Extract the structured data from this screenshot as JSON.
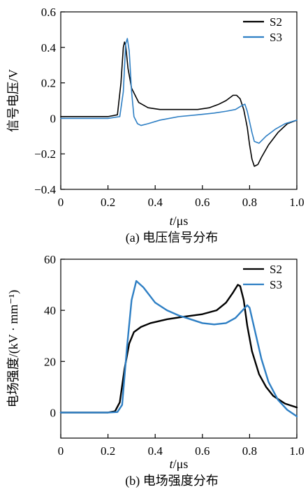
{
  "chart_data": [
    {
      "type": "line",
      "caption": "(a)  电压信号分布",
      "xlabel_italic": "t",
      "xlabel_rest": "/μs",
      "ylabel": "信号电压/V",
      "xlim": [
        0,
        1.0
      ],
      "ylim": [
        -0.4,
        0.6
      ],
      "xticks": [
        "0",
        "0.2",
        "0.4",
        "0.6",
        "0.8",
        "1.0"
      ],
      "xtick_values": [
        0,
        0.2,
        0.4,
        0.6,
        0.8,
        1.0
      ],
      "yticks": [
        "−0.4",
        "−0.2",
        "0",
        "0.2",
        "0.4",
        "0.6"
      ],
      "ytick_values": [
        -0.4,
        -0.2,
        0,
        0.2,
        0.4,
        0.6
      ],
      "legend_position": "top-right",
      "series": [
        {
          "name": "S2",
          "color": "#000000",
          "x": [
            0,
            0.1,
            0.2,
            0.24,
            0.255,
            0.265,
            0.27,
            0.275,
            0.285,
            0.3,
            0.33,
            0.37,
            0.42,
            0.5,
            0.58,
            0.63,
            0.67,
            0.7,
            0.73,
            0.745,
            0.76,
            0.775,
            0.79,
            0.8,
            0.81,
            0.82,
            0.835,
            0.85,
            0.88,
            0.92,
            0.96,
            1.0
          ],
          "values": [
            0.01,
            0.01,
            0.01,
            0.02,
            0.2,
            0.4,
            0.43,
            0.41,
            0.28,
            0.17,
            0.09,
            0.06,
            0.05,
            0.05,
            0.05,
            0.06,
            0.08,
            0.1,
            0.13,
            0.13,
            0.11,
            0.05,
            -0.05,
            -0.15,
            -0.23,
            -0.27,
            -0.26,
            -0.22,
            -0.15,
            -0.08,
            -0.03,
            -0.01
          ]
        },
        {
          "name": "S3",
          "color": "#2e7fc4",
          "x": [
            0,
            0.1,
            0.2,
            0.25,
            0.265,
            0.275,
            0.282,
            0.29,
            0.3,
            0.31,
            0.325,
            0.34,
            0.37,
            0.42,
            0.5,
            0.58,
            0.65,
            0.7,
            0.74,
            0.765,
            0.78,
            0.79,
            0.8,
            0.81,
            0.82,
            0.84,
            0.87,
            0.91,
            0.95,
            1.0
          ],
          "values": [
            0,
            0,
            0,
            0.01,
            0.15,
            0.42,
            0.45,
            0.38,
            0.15,
            0.01,
            -0.03,
            -0.04,
            -0.03,
            -0.01,
            0.01,
            0.02,
            0.03,
            0.04,
            0.05,
            0.07,
            0.08,
            0.04,
            -0.02,
            -0.08,
            -0.13,
            -0.14,
            -0.1,
            -0.06,
            -0.03,
            -0.01
          ]
        }
      ]
    },
    {
      "type": "line",
      "caption": "(b)  电场强度分布",
      "xlabel_italic": "t",
      "xlabel_rest": "/μs",
      "ylabel": "电场强度/(kV · mm⁻¹)",
      "xlim": [
        0,
        1.0
      ],
      "ylim": [
        -10,
        60
      ],
      "xticks": [
        "0",
        "0.2",
        "0.4",
        "0.6",
        "0.8",
        "1.0"
      ],
      "xtick_values": [
        0,
        0.2,
        0.4,
        0.6,
        0.8,
        1.0
      ],
      "yticks": [
        "0",
        "20",
        "40",
        "60"
      ],
      "ytick_values": [
        0,
        20,
        40,
        60
      ],
      "legend_position": "top-right",
      "series": [
        {
          "name": "S2",
          "color": "#000000",
          "x": [
            0,
            0.1,
            0.2,
            0.23,
            0.25,
            0.27,
            0.29,
            0.31,
            0.34,
            0.38,
            0.45,
            0.52,
            0.6,
            0.66,
            0.7,
            0.73,
            0.75,
            0.76,
            0.775,
            0.79,
            0.81,
            0.84,
            0.87,
            0.9,
            0.95,
            1.0
          ],
          "values": [
            0,
            0,
            0,
            0.5,
            4,
            17,
            27,
            31.5,
            33.5,
            35,
            36.5,
            37.5,
            38.5,
            40,
            43,
            47,
            50,
            49.5,
            44,
            34,
            24,
            15,
            10,
            6.5,
            3.5,
            2
          ]
        },
        {
          "name": "S3",
          "color": "#2e7fc4",
          "x": [
            0,
            0.1,
            0.2,
            0.24,
            0.26,
            0.28,
            0.3,
            0.32,
            0.35,
            0.4,
            0.45,
            0.5,
            0.55,
            0.6,
            0.65,
            0.7,
            0.74,
            0.77,
            0.79,
            0.8,
            0.82,
            0.85,
            0.88,
            0.92,
            0.96,
            1.0
          ],
          "values": [
            0,
            0,
            0,
            0.2,
            3,
            25,
            44,
            51.5,
            49,
            43,
            40,
            38,
            36.5,
            35,
            34.5,
            35,
            37,
            40,
            42,
            41,
            33,
            21,
            12,
            5,
            1,
            -1.5
          ]
        }
      ]
    }
  ]
}
